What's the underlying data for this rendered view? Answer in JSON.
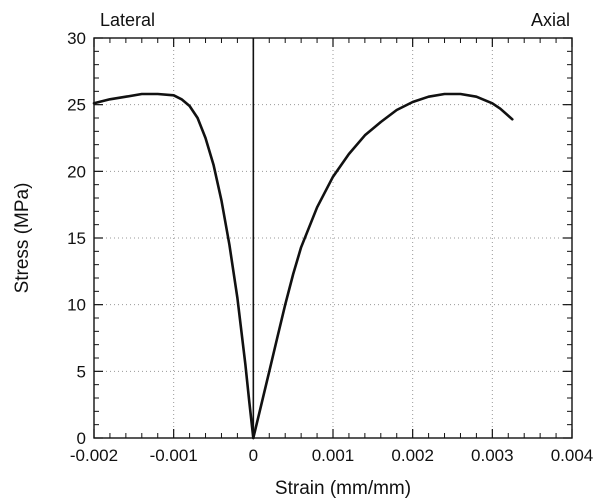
{
  "chart_data": {
    "type": "line",
    "title": "",
    "xlabel": "Strain (mm/mm)",
    "ylabel": "Stress (MPa)",
    "xlim": [
      -0.002,
      0.004
    ],
    "ylim": [
      0,
      30
    ],
    "x_ticks": [
      -0.002,
      -0.001,
      0,
      0.001,
      0.002,
      0.003,
      0.004
    ],
    "x_tick_labels": [
      "-0.002",
      "-0.001",
      "0",
      "0.001",
      "0.002",
      "0.003",
      "0.004"
    ],
    "y_ticks": [
      0,
      5,
      10,
      15,
      20,
      25,
      30
    ],
    "y_tick_labels": [
      "0",
      "5",
      "10",
      "15",
      "20",
      "25",
      "30"
    ],
    "grid": true,
    "annotations": [
      {
        "text": "Lateral",
        "position": "top-left"
      },
      {
        "text": "Axial",
        "position": "top-right"
      }
    ],
    "series": [
      {
        "x": [
          -0.002,
          -0.0018,
          -0.0016,
          -0.0014,
          -0.0012,
          -0.001,
          -0.0009,
          -0.0008,
          -0.0007,
          -0.0006,
          -0.0005,
          -0.0004,
          -0.0003,
          -0.0002,
          -0.0001,
          -5e-05,
          0
        ],
        "y": [
          25.1,
          25.4,
          25.6,
          25.8,
          25.8,
          25.7,
          25.4,
          24.9,
          24.0,
          22.5,
          20.5,
          17.8,
          14.5,
          10.5,
          5.5,
          2.7,
          0
        ]
      },
      {
        "x": [
          0,
          0.0001,
          0.0002,
          0.0003,
          0.0004,
          0.0005,
          0.0006,
          0.0008,
          0.001,
          0.0012,
          0.0014,
          0.0016,
          0.0018,
          0.002,
          0.0022,
          0.0024,
          0.0026,
          0.0028,
          0.003,
          0.0031,
          0.00325
        ],
        "y": [
          0,
          2.5,
          5.0,
          7.5,
          10.0,
          12.3,
          14.3,
          17.3,
          19.6,
          21.3,
          22.7,
          23.7,
          24.6,
          25.2,
          25.6,
          25.8,
          25.8,
          25.6,
          25.1,
          24.7,
          23.9
        ]
      }
    ]
  }
}
